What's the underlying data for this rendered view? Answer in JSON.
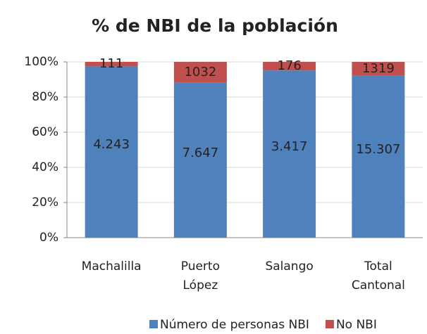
{
  "chart_data": {
    "type": "bar",
    "stacking": "percent",
    "title": "% de NBI de la población",
    "categories": [
      "Machalilla",
      "Puerto López",
      "Salango",
      "Total Cantonal"
    ],
    "series": [
      {
        "name": "Número de personas NBI",
        "color": "#4f81bd",
        "values": [
          4243,
          7647,
          3417,
          15307
        ],
        "value_labels": [
          "4.243",
          "7.647",
          "3.417",
          "15.307"
        ]
      },
      {
        "name": "No NBI",
        "color": "#c0504d",
        "values": [
          111,
          1032,
          176,
          1319
        ]
      }
    ],
    "ylim": [
      0,
      100
    ],
    "yticks": [
      {
        "value": 0,
        "label": "0%"
      },
      {
        "value": 20,
        "label": "20%"
      },
      {
        "value": 40,
        "label": "40%"
      },
      {
        "value": 60,
        "label": "60%"
      },
      {
        "value": 80,
        "label": "80%"
      },
      {
        "value": 100,
        "label": "100%"
      }
    ],
    "grid": true,
    "legend": "bottom"
  }
}
